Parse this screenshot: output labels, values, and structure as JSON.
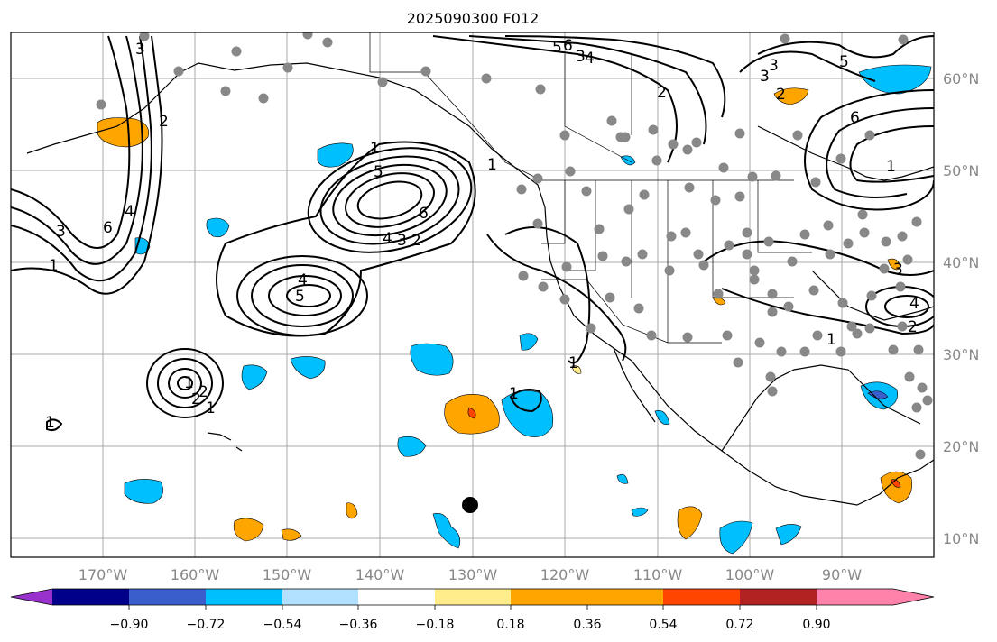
{
  "title": "2025090300 F012",
  "lon_labels": [
    "170°W",
    "160°W",
    "150°W",
    "140°W",
    "130°W",
    "120°W",
    "110°W",
    "100°W",
    "90°W"
  ],
  "lat_labels": [
    "60°N",
    "50°N",
    "40°N",
    "30°N",
    "20°N",
    "10°N"
  ],
  "colorbar": {
    "colors": [
      "#9932CC",
      "#00008B",
      "#3A5FCD",
      "#00BFFF",
      "#B2E0FF",
      "#FFFFFF",
      "#FFEC8B",
      "#FFA500",
      "#FF4500",
      "#B22222",
      "#FF82AB"
    ],
    "tick_labels": [
      "−0.90",
      "−0.72",
      "−0.54",
      "−0.36",
      "−0.18",
      "0.18",
      "0.36",
      "0.54",
      "0.72",
      "0.90"
    ]
  },
  "contour_labels": [
    "5",
    "6",
    "4",
    "3",
    "5",
    "6",
    "2",
    "1",
    "1",
    "5",
    "6",
    "4",
    "3",
    "2",
    "4",
    "5",
    "3",
    "2",
    "1",
    "1",
    "3",
    "2",
    "1",
    "3",
    "4",
    "1",
    "2",
    "6",
    "3",
    "1",
    "1",
    "2",
    "3",
    "4",
    "1",
    "2",
    "1"
  ],
  "marker_colors": {
    "station": "#888888",
    "center": "#000000"
  }
}
